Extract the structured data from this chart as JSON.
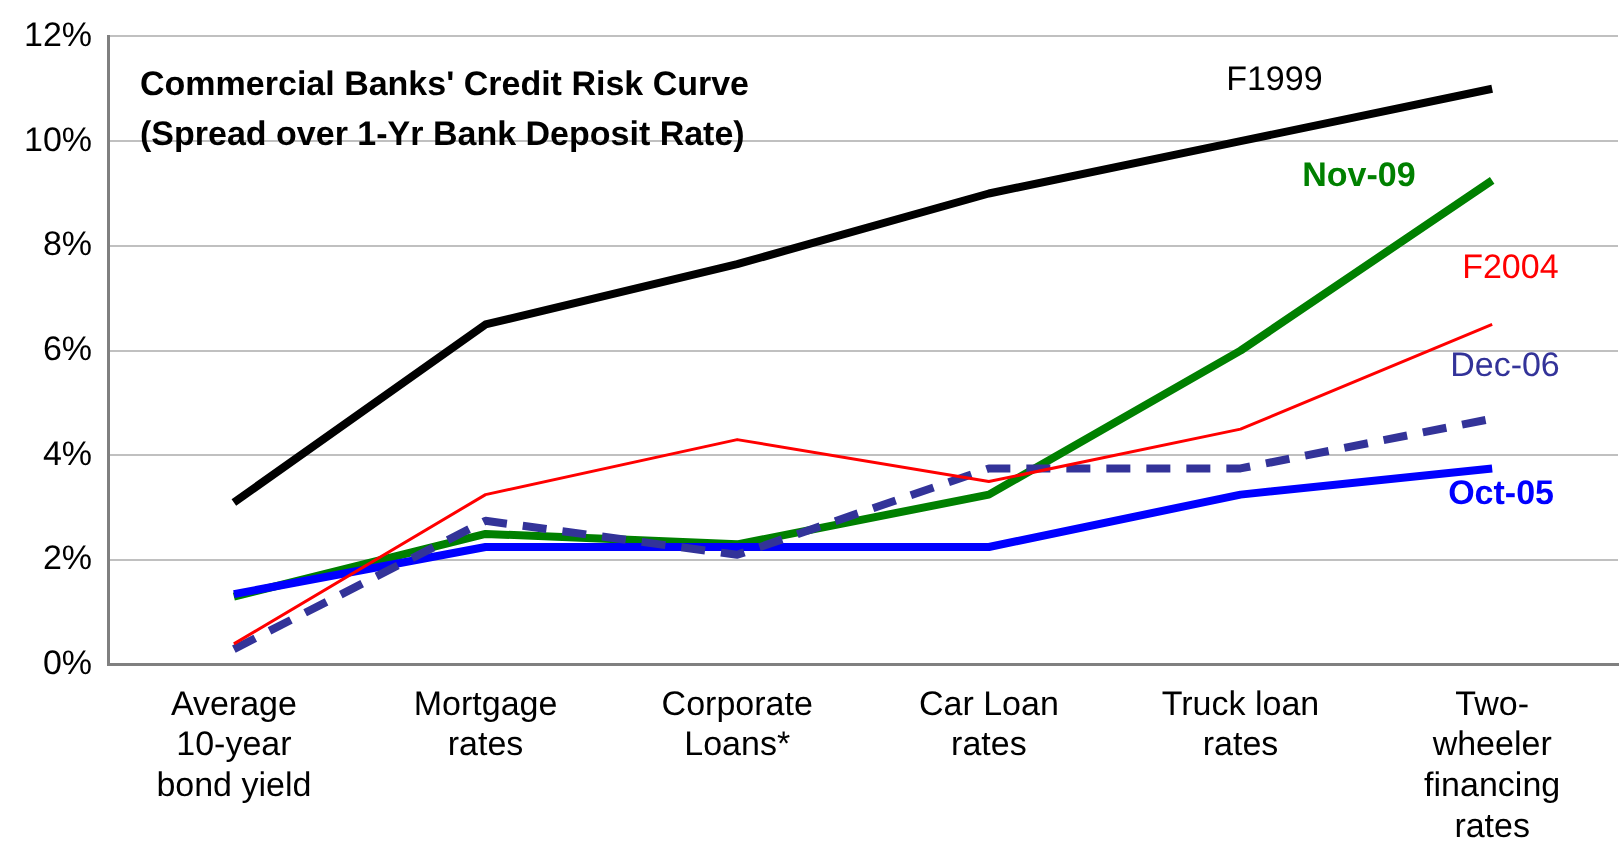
{
  "chart_data": {
    "type": "line",
    "title": "Commercial Banks' Credit Risk Curve\n(Spread over 1-Yr Bank Deposit Rate)",
    "categories": [
      "Average 10-year bond yield",
      "Mortgage rates",
      "Corporate Loans*",
      "Car Loan rates",
      "Truck loan rates",
      "Two-wheeler financing rates"
    ],
    "series": [
      {
        "name": "F1999",
        "color": "#000000",
        "values": [
          3.1,
          6.5,
          7.65,
          9.0,
          10.0,
          11.0
        ]
      },
      {
        "name": "F2004",
        "color": "#ff0000",
        "values": [
          0.4,
          3.25,
          4.3,
          3.5,
          4.5,
          6.5
        ]
      },
      {
        "name": "Dec-06",
        "color": "#333399",
        "line_style": "dashed",
        "values": [
          0.3,
          2.75,
          2.1,
          3.75,
          3.75,
          4.7
        ]
      },
      {
        "name": "Oct-05",
        "color": "#0000ff",
        "values": [
          1.35,
          2.25,
          2.25,
          2.25,
          3.25,
          3.75
        ]
      },
      {
        "name": "Nov-09",
        "color": "#008000",
        "values": [
          1.3,
          2.5,
          2.3,
          3.25,
          6.0,
          9.25
        ]
      }
    ],
    "ylim": [
      0,
      12
    ],
    "yticks": [
      {
        "value": 0,
        "label": "0%"
      },
      {
        "value": 2,
        "label": "2%"
      },
      {
        "value": 4,
        "label": "4%"
      },
      {
        "value": 6,
        "label": "6%"
      },
      {
        "value": 8,
        "label": "8%"
      },
      {
        "value": 10,
        "label": "10%"
      },
      {
        "value": 12,
        "label": "12%"
      }
    ],
    "grid": "y",
    "legend": false,
    "marker": "none"
  }
}
